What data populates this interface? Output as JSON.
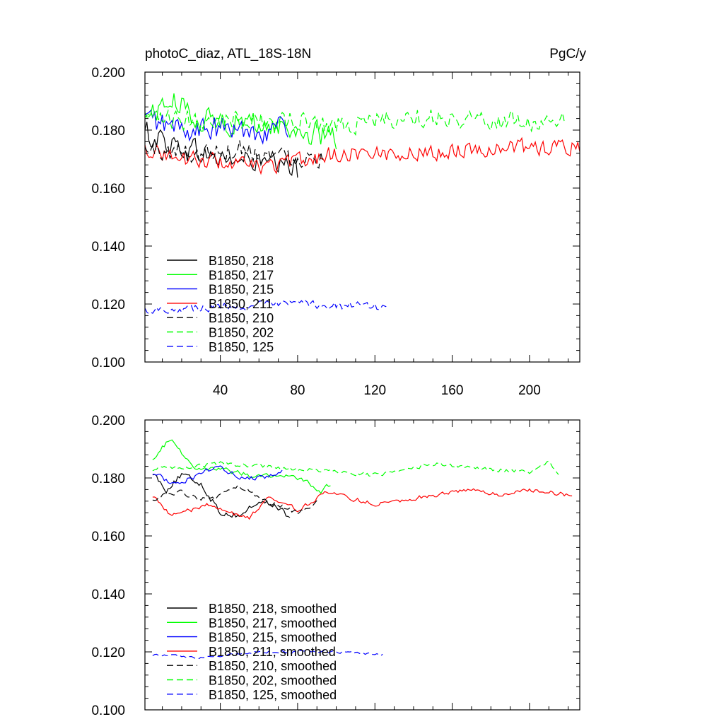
{
  "panels": [
    {
      "title_left": "photoC_diaz, ATL_18S-18N",
      "title_right": "PgC/y"
    },
    {
      "title_left": "",
      "title_right": ""
    }
  ],
  "chart_data": [
    {
      "type": "line",
      "title": "photoC_diaz, ATL_18S-18N",
      "units": "PgC/y",
      "xlim": [
        1,
        226
      ],
      "ylim": [
        0.1,
        0.2
      ],
      "xticks": [
        40,
        80,
        120,
        160,
        200
      ],
      "yticks": [
        0.1,
        0.12,
        0.14,
        0.16,
        0.18,
        0.2
      ],
      "ytick_labels": [
        "0.100",
        "0.120",
        "0.140",
        "0.160",
        "0.180",
        "0.200"
      ],
      "show_x_tick_labels": true,
      "legend_position": "bottom-left",
      "series": [
        {
          "name": "B1850, 218",
          "color": "#000000",
          "dash": "solid",
          "n": 80,
          "base": 0.175,
          "noise": 0.006,
          "control": [
            [
              1,
              0.179
            ],
            [
              20,
              0.174
            ],
            [
              40,
              0.17
            ],
            [
              60,
              0.169
            ],
            [
              80,
              0.166
            ]
          ]
        },
        {
          "name": "B1850, 217",
          "color": "#00ff00",
          "dash": "solid",
          "n": 100,
          "base": 0.185,
          "noise": 0.006,
          "control": [
            [
              1,
              0.185
            ],
            [
              15,
              0.19
            ],
            [
              30,
              0.184
            ],
            [
              60,
              0.182
            ],
            [
              80,
              0.18
            ],
            [
              100,
              0.177
            ]
          ]
        },
        {
          "name": "B1850, 215",
          "color": "#0000ff",
          "dash": "solid",
          "n": 75,
          "base": 0.181,
          "noise": 0.006,
          "control": [
            [
              1,
              0.184
            ],
            [
              20,
              0.18
            ],
            [
              40,
              0.18
            ],
            [
              60,
              0.18
            ],
            [
              75,
              0.181
            ]
          ]
        },
        {
          "name": "B1850, 211",
          "color": "#ff0000",
          "dash": "solid",
          "n": 226,
          "base": 0.172,
          "noise": 0.004,
          "control": [
            [
              1,
              0.174
            ],
            [
              20,
              0.17
            ],
            [
              40,
              0.169
            ],
            [
              60,
              0.167
            ],
            [
              80,
              0.169
            ],
            [
              100,
              0.172
            ],
            [
              140,
              0.172
            ],
            [
              180,
              0.174
            ],
            [
              226,
              0.174
            ]
          ]
        },
        {
          "name": "B1850, 210",
          "color": "#000000",
          "dash": "dash",
          "n": 93,
          "base": 0.172,
          "noise": 0.005,
          "control": [
            [
              1,
              0.173
            ],
            [
              30,
              0.172
            ],
            [
              50,
              0.174
            ],
            [
              70,
              0.171
            ],
            [
              93,
              0.171
            ]
          ]
        },
        {
          "name": "B1850, 202",
          "color": "#00ff00",
          "dash": "dash",
          "n": 218,
          "base": 0.183,
          "noise": 0.005,
          "control": [
            [
              1,
              0.183
            ],
            [
              50,
              0.184
            ],
            [
              100,
              0.182
            ],
            [
              150,
              0.185
            ],
            [
              190,
              0.183
            ],
            [
              218,
              0.182
            ]
          ]
        },
        {
          "name": "B1850, 125",
          "color": "#0000ff",
          "dash": "dash",
          "n": 127,
          "base": 0.119,
          "noise": 0.002,
          "control": [
            [
              1,
              0.118
            ],
            [
              40,
              0.119
            ],
            [
              80,
              0.12
            ],
            [
              127,
              0.119
            ]
          ]
        }
      ]
    },
    {
      "type": "line",
      "title": "",
      "units": "",
      "xlim": [
        1,
        226
      ],
      "ylim": [
        0.1,
        0.2
      ],
      "xticks": [
        40,
        80,
        120,
        160,
        200
      ],
      "yticks": [
        0.1,
        0.12,
        0.14,
        0.16,
        0.18,
        0.2
      ],
      "ytick_labels": [
        "0.100",
        "0.120",
        "0.140",
        "0.160",
        "0.180",
        "0.200"
      ],
      "show_x_tick_labels": false,
      "legend_position": "bottom-left",
      "series": [
        {
          "name": "B1850, 218, smoothed",
          "color": "#000000",
          "dash": "solid",
          "n": 76,
          "base": 0.175,
          "noise": 0.0015,
          "control": [
            [
              5,
              0.182
            ],
            [
              12,
              0.176
            ],
            [
              20,
              0.181
            ],
            [
              30,
              0.178
            ],
            [
              40,
              0.168
            ],
            [
              50,
              0.167
            ],
            [
              60,
              0.172
            ],
            [
              70,
              0.17
            ],
            [
              76,
              0.166
            ]
          ]
        },
        {
          "name": "B1850, 217, smoothed",
          "color": "#00ff00",
          "dash": "solid",
          "n": 97,
          "base": 0.185,
          "noise": 0.0012,
          "control": [
            [
              5,
              0.187
            ],
            [
              15,
              0.194
            ],
            [
              25,
              0.184
            ],
            [
              40,
              0.183
            ],
            [
              55,
              0.181
            ],
            [
              70,
              0.181
            ],
            [
              85,
              0.179
            ],
            [
              92,
              0.175
            ],
            [
              97,
              0.178
            ]
          ]
        },
        {
          "name": "B1850, 215, smoothed",
          "color": "#0000ff",
          "dash": "solid",
          "n": 72,
          "base": 0.181,
          "noise": 0.0012,
          "control": [
            [
              5,
              0.182
            ],
            [
              15,
              0.178
            ],
            [
              25,
              0.18
            ],
            [
              40,
              0.184
            ],
            [
              50,
              0.18
            ],
            [
              60,
              0.18
            ],
            [
              72,
              0.182
            ]
          ]
        },
        {
          "name": "B1850, 211, smoothed",
          "color": "#ff0000",
          "dash": "solid",
          "n": 222,
          "base": 0.172,
          "noise": 0.001,
          "control": [
            [
              5,
              0.174
            ],
            [
              15,
              0.167
            ],
            [
              25,
              0.169
            ],
            [
              35,
              0.171
            ],
            [
              45,
              0.168
            ],
            [
              55,
              0.166
            ],
            [
              65,
              0.174
            ],
            [
              80,
              0.169
            ],
            [
              95,
              0.175
            ],
            [
              120,
              0.171
            ],
            [
              150,
              0.174
            ],
            [
              170,
              0.176
            ],
            [
              185,
              0.174
            ],
            [
              200,
              0.176
            ],
            [
              222,
              0.174
            ]
          ]
        },
        {
          "name": "B1850, 210, smoothed",
          "color": "#000000",
          "dash": "dash",
          "n": 90,
          "base": 0.172,
          "noise": 0.0012,
          "control": [
            [
              5,
              0.173
            ],
            [
              20,
              0.175
            ],
            [
              35,
              0.172
            ],
            [
              50,
              0.177
            ],
            [
              65,
              0.172
            ],
            [
              80,
              0.168
            ],
            [
              90,
              0.172
            ]
          ]
        },
        {
          "name": "B1850, 202, smoothed",
          "color": "#00ff00",
          "dash": "dash",
          "n": 215,
          "base": 0.183,
          "noise": 0.001,
          "control": [
            [
              5,
              0.183
            ],
            [
              40,
              0.185
            ],
            [
              80,
              0.183
            ],
            [
              120,
              0.181
            ],
            [
              150,
              0.185
            ],
            [
              180,
              0.183
            ],
            [
              200,
              0.182
            ],
            [
              210,
              0.186
            ],
            [
              215,
              0.181
            ]
          ]
        },
        {
          "name": "B1850, 125, smoothed",
          "color": "#0000ff",
          "dash": "dash",
          "n": 124,
          "base": 0.119,
          "noise": 0.0006,
          "control": [
            [
              5,
              0.119
            ],
            [
              30,
              0.118
            ],
            [
              60,
              0.12
            ],
            [
              100,
              0.12
            ],
            [
              124,
              0.119
            ]
          ]
        }
      ]
    }
  ]
}
